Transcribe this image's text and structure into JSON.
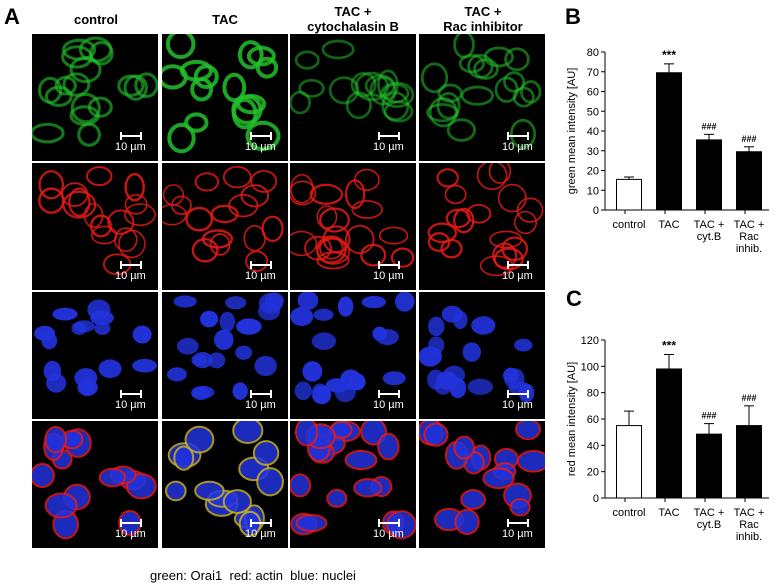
{
  "panel_a": {
    "letter": "A",
    "columns": [
      "control",
      "TAC",
      "TAC +\ncytochalasin B",
      "TAC +\nRac inhibitor"
    ],
    "rows": [
      "green",
      "red",
      "blue",
      "merge"
    ],
    "scale_label": "10 µm",
    "caption": "green: Orai1  red: actin  blue: nuclei",
    "colors": {
      "green": "#22c12a",
      "red": "#e81a14",
      "blue": "#2233dd"
    }
  },
  "chart_data": [
    {
      "panel": "B",
      "type": "bar",
      "categories": [
        "control",
        "TAC",
        "TAC +\ncyt.B",
        "TAC +\nRac\ninhib."
      ],
      "values": [
        15.5,
        69.5,
        35.5,
        29.5
      ],
      "errors": [
        1.2,
        4.5,
        2.8,
        2.5
      ],
      "fills": [
        "#ffffff",
        "#000000",
        "#000000",
        "#000000"
      ],
      "annotations": [
        "",
        "***",
        "###",
        "###"
      ],
      "ylabel": "green mean intensity [AU]",
      "ylim": [
        0,
        80
      ],
      "yticks": [
        0,
        10,
        20,
        30,
        40,
        50,
        60,
        70,
        80
      ]
    },
    {
      "panel": "C",
      "type": "bar",
      "categories": [
        "control",
        "TAC",
        "TAC +\ncyt.B",
        "TAC +\nRac\ninhib."
      ],
      "values": [
        55,
        98,
        48.5,
        55
      ],
      "errors": [
        11,
        11,
        8,
        15
      ],
      "fills": [
        "#ffffff",
        "#000000",
        "#000000",
        "#000000"
      ],
      "annotations": [
        "",
        "***",
        "###",
        "###"
      ],
      "ylabel": "red mean intensity [AU]",
      "ylim": [
        0,
        120
      ],
      "yticks": [
        0,
        20,
        40,
        60,
        80,
        100,
        120
      ]
    }
  ]
}
